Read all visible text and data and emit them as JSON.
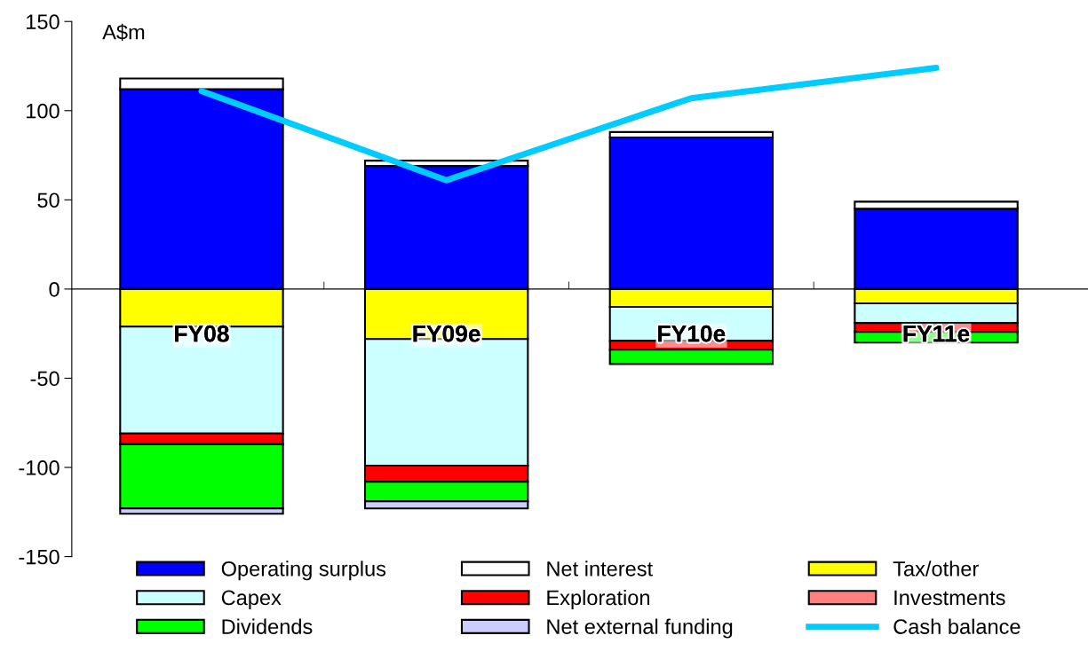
{
  "chart_data": {
    "type": "bar",
    "stacked": true,
    "ylabel": "A$m",
    "categories": [
      "FY08",
      "FY09e",
      "FY10e",
      "FY11e"
    ],
    "series": [
      {
        "name": "Operating surplus",
        "color": "#0000ff",
        "values": [
          112,
          69,
          85,
          45
        ]
      },
      {
        "name": "Net interest",
        "color": "#ffffff",
        "values": [
          6,
          3,
          3,
          4
        ]
      },
      {
        "name": "Tax/other",
        "color": "#ffff00",
        "values": [
          -21,
          -28,
          -10,
          -8
        ]
      },
      {
        "name": "Capex",
        "color": "#ccffff",
        "values": [
          -60,
          -71,
          -19,
          -11
        ]
      },
      {
        "name": "Exploration",
        "color": "#ff0000",
        "values": [
          -6,
          -9,
          -5,
          -5
        ]
      },
      {
        "name": "Investments",
        "color": "#ff8080",
        "values": [
          null,
          null,
          null,
          null
        ]
      },
      {
        "name": "Dividends",
        "color": "#00ff00",
        "values": [
          -36,
          -11,
          -8,
          -6
        ]
      },
      {
        "name": "Net external funding",
        "color": "#ccccff",
        "values": [
          -3,
          -4,
          null,
          null
        ]
      },
      {
        "name": "Cash balance",
        "type": "line",
        "color": "#00ccff",
        "values": [
          111,
          61,
          107,
          124
        ]
      }
    ],
    "ylim": [
      -150,
      150
    ],
    "yticks": [
      -150,
      -100,
      -50,
      0,
      50,
      100,
      150
    ],
    "legend": "bottom",
    "grid": false
  }
}
